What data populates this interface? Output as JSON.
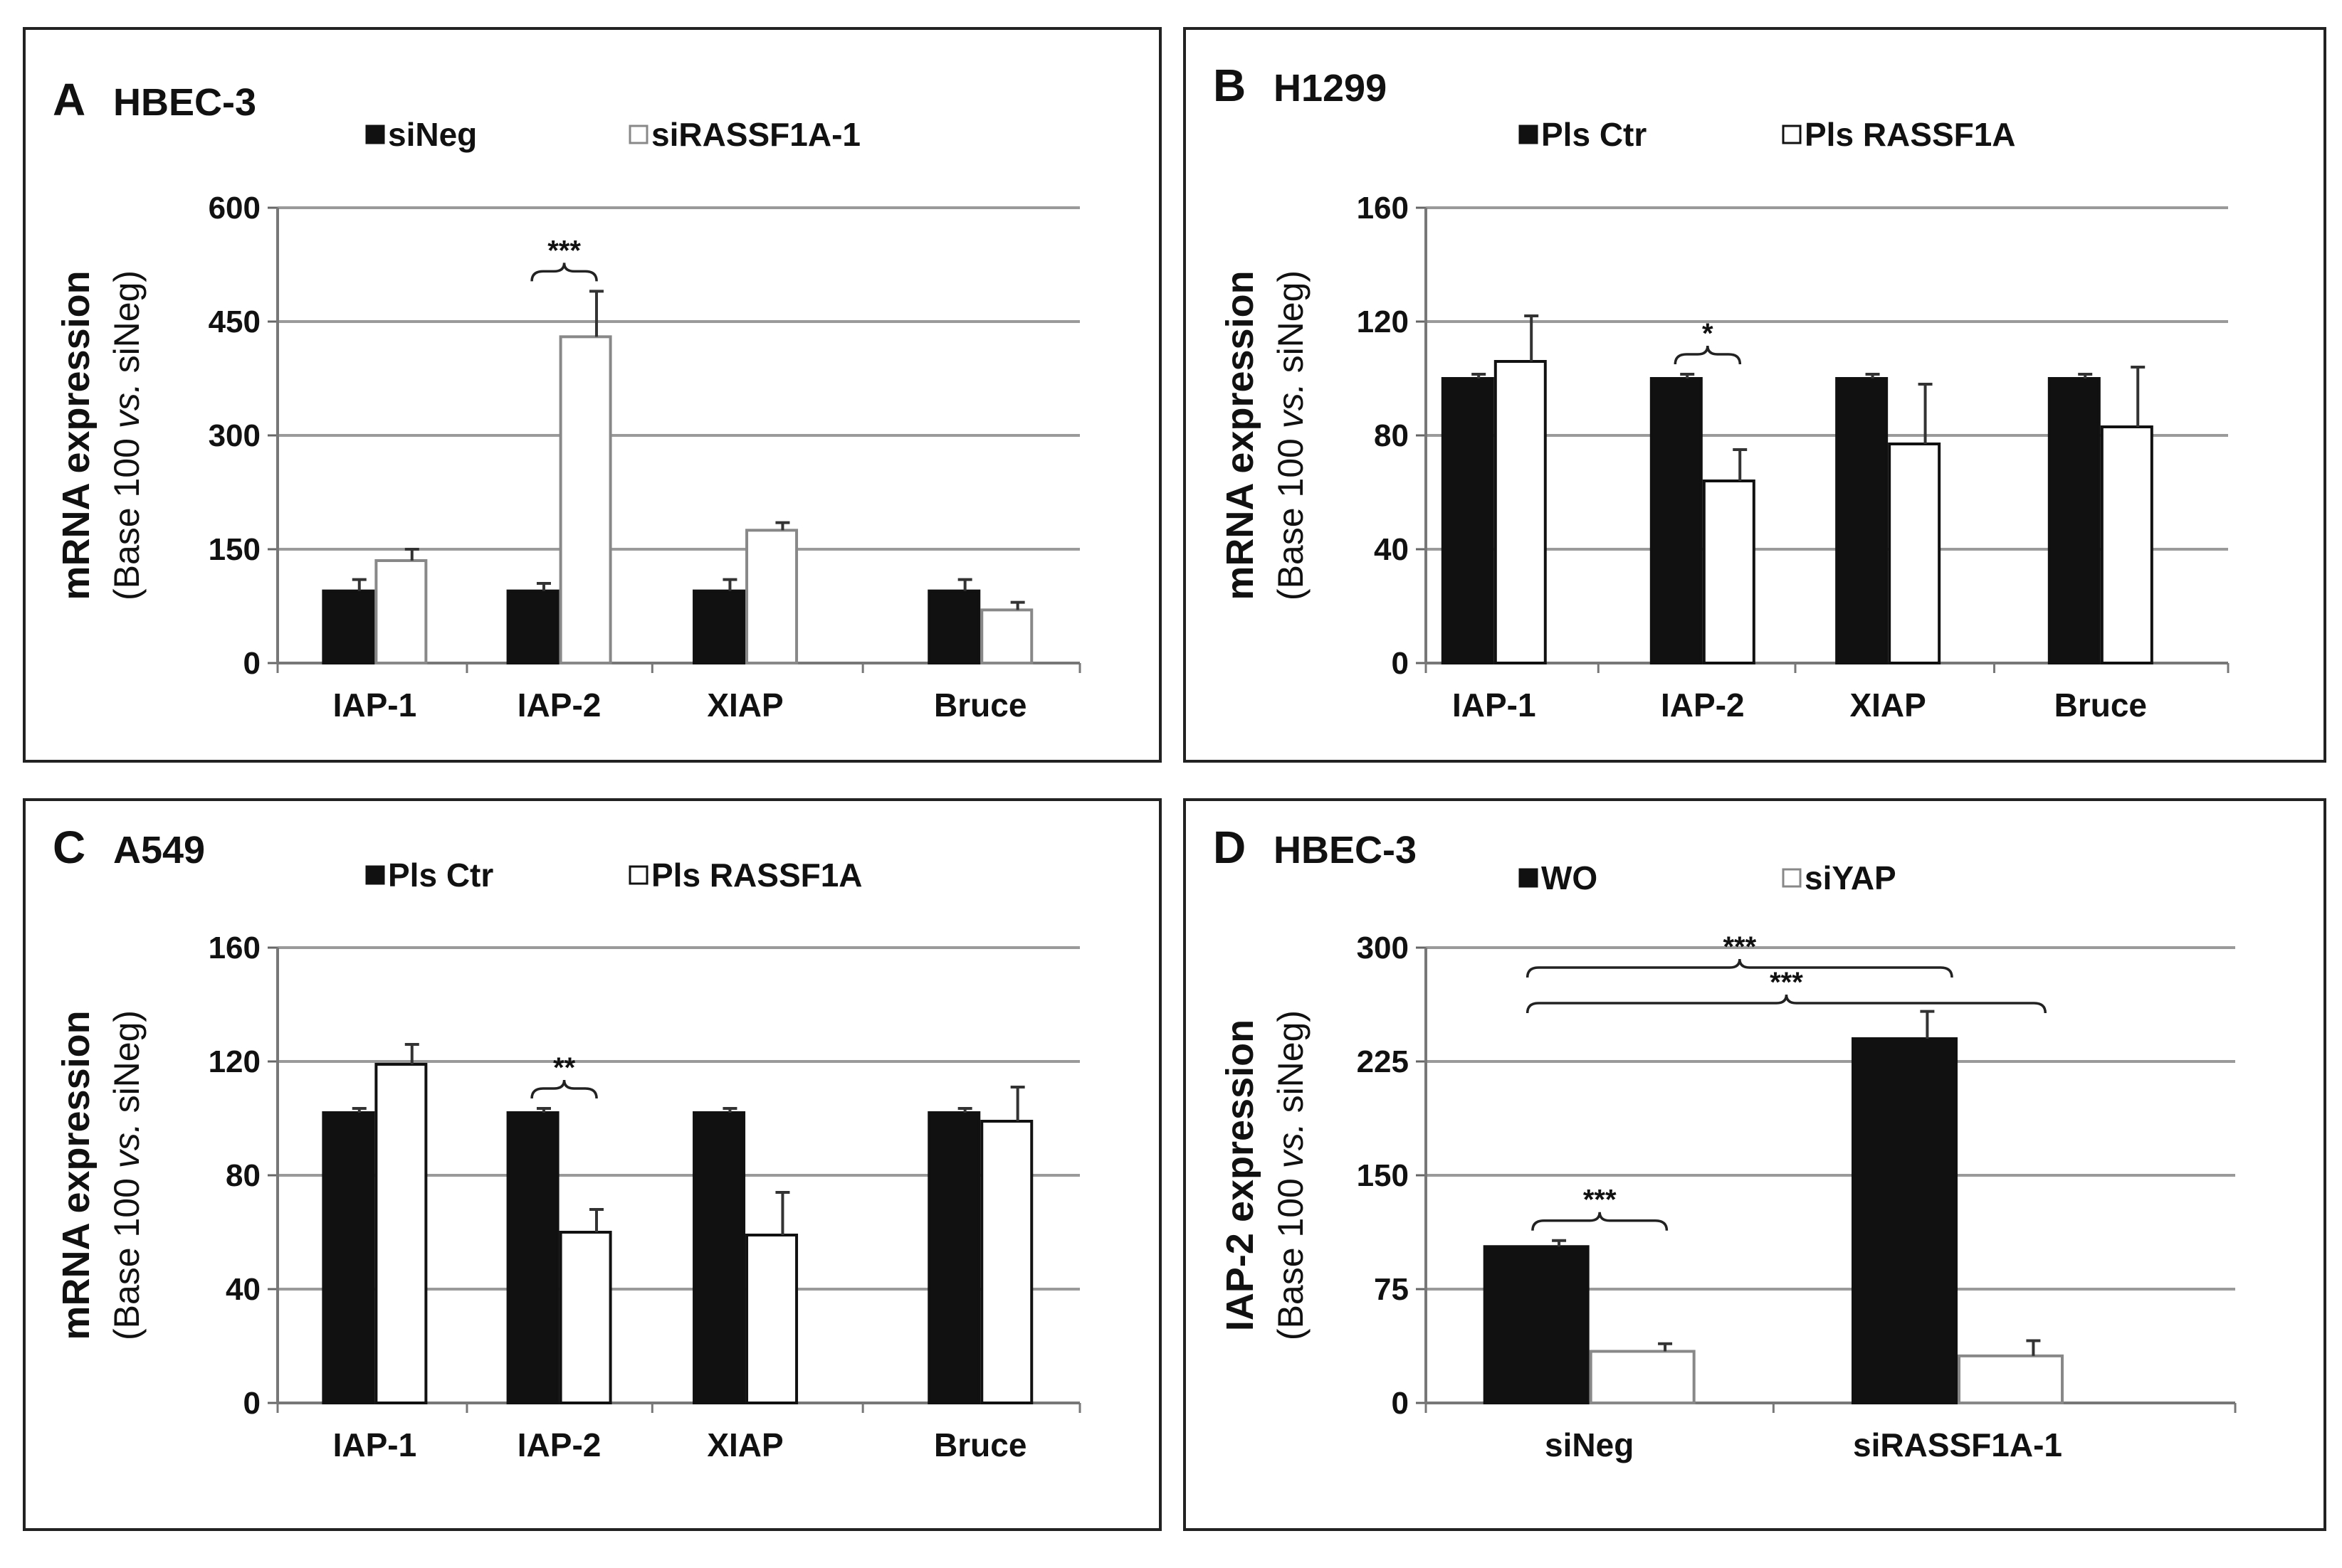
{
  "chart_data": [
    {
      "type": "bar",
      "panel": "A",
      "title": "HBEC-3",
      "ylabel_line1": "mRNA expression",
      "ylabel_pre": "(Base 100 ",
      "ylabel_ital": "vs.",
      "ylabel_post": " siNeg)",
      "ylim": [
        0,
        600
      ],
      "yticks": [
        "0",
        "150",
        "300",
        "450",
        "600"
      ],
      "categories": [
        "IAP-1",
        "IAP-2",
        "XIAP",
        "Bruce"
      ],
      "series": [
        {
          "name": "siNeg",
          "fill": "#111111",
          "stroke": "#111111",
          "values": [
            95,
            95,
            95,
            95
          ],
          "errors": [
            15,
            10,
            15,
            15
          ]
        },
        {
          "name": "siRASSF1A-1",
          "fill": "#ffffff",
          "stroke": "#888888",
          "values": [
            135,
            430,
            175,
            70
          ],
          "errors": [
            15,
            60,
            10,
            10
          ]
        }
      ],
      "annotations": [
        {
          "category": 1,
          "label": "***"
        }
      ],
      "grid": true,
      "legend": "top"
    },
    {
      "type": "bar",
      "panel": "B",
      "title": "H1299",
      "ylabel_line1": "mRNA expression",
      "ylabel_pre": "(Base 100 ",
      "ylabel_ital": "vs.",
      "ylabel_post": " siNeg)",
      "ylim": [
        0,
        160
      ],
      "yticks": [
        "0",
        "40",
        "80",
        "120",
        "160"
      ],
      "categories": [
        "IAP-1",
        "IAP-2",
        "XIAP",
        "Bruce"
      ],
      "series": [
        {
          "name": "Pls Ctr",
          "fill": "#111111",
          "stroke": "#111111",
          "values": [
            100,
            100,
            100,
            100
          ],
          "errors": [
            1.5,
            1.5,
            1.5,
            1.5
          ]
        },
        {
          "name": "Pls RASSF1A",
          "fill": "#ffffff",
          "stroke": "#111111",
          "values": [
            106,
            64,
            77,
            83
          ],
          "errors": [
            16,
            11,
            21,
            21
          ]
        }
      ],
      "annotations": [
        {
          "category": 1,
          "label": "*"
        }
      ],
      "grid": true,
      "legend": "top"
    },
    {
      "type": "bar",
      "panel": "C",
      "title": "A549",
      "ylabel_line1": "mRNA expression",
      "ylabel_pre": "(Base 100 ",
      "ylabel_ital": "vs.",
      "ylabel_post": " siNeg)",
      "ylim": [
        0,
        160
      ],
      "yticks": [
        "0",
        "40",
        "80",
        "120",
        "160"
      ],
      "categories": [
        "IAP-1",
        "IAP-2",
        "XIAP",
        "Bruce"
      ],
      "series": [
        {
          "name": "Pls Ctr",
          "fill": "#111111",
          "stroke": "#111111",
          "values": [
            102,
            102,
            102,
            102
          ],
          "errors": [
            1.5,
            1.5,
            1.5,
            1.5
          ]
        },
        {
          "name": "Pls RASSF1A",
          "fill": "#ffffff",
          "stroke": "#111111",
          "values": [
            119,
            60,
            59,
            99
          ],
          "errors": [
            7,
            8,
            15,
            12
          ]
        }
      ],
      "annotations": [
        {
          "category": 1,
          "label": "**"
        }
      ],
      "grid": true,
      "legend": "top"
    },
    {
      "type": "bar",
      "panel": "D",
      "title": "HBEC-3",
      "ylabel_line1": "IAP-2 expression",
      "ylabel_pre": "(Base 100 ",
      "ylabel_ital": "vs.",
      "ylabel_post": " siNeg)",
      "ylim": [
        0,
        300
      ],
      "yticks": [
        "0",
        "75",
        "150",
        "225",
        "300"
      ],
      "categories": [
        "siNeg",
        "siRASSF1A-1"
      ],
      "series": [
        {
          "name": "WO",
          "fill": "#111111",
          "stroke": "#111111",
          "values": [
            103,
            240
          ],
          "errors": [
            4,
            18
          ]
        },
        {
          "name": "siYAP",
          "fill": "#ffffff",
          "stroke": "#888888",
          "values": [
            34,
            31
          ],
          "errors": [
            5,
            10
          ]
        }
      ],
      "annotations": [
        {
          "category": 0,
          "label": "***"
        },
        {
          "span": [
            0.55,
            1.45
          ],
          "label": "***",
          "level": 1
        },
        {
          "span": [
            0.55,
            1.7
          ],
          "label": "***",
          "level": 2
        }
      ],
      "grid": true,
      "legend": "top"
    }
  ]
}
